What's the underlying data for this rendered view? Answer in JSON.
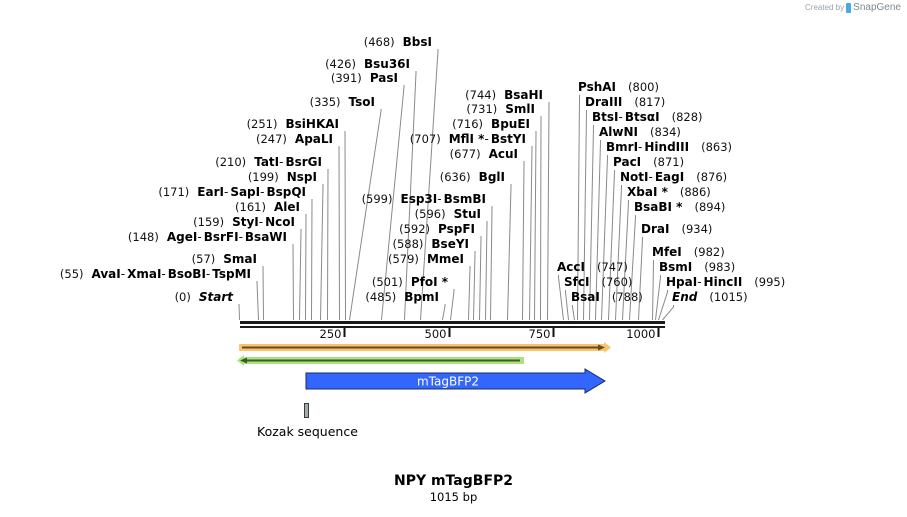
{
  "credit": {
    "prefix": "Created by",
    "brand": "SnapGene"
  },
  "map": {
    "name": "NPY mTagBFP2",
    "length_label": "1015 bp",
    "length_bp": 1015
  },
  "ruler": {
    "ticks": [
      {
        "bp": 250,
        "label": "250"
      },
      {
        "bp": 500,
        "label": "500"
      },
      {
        "bp": 750,
        "label": "750"
      },
      {
        "bp": 1000,
        "label": "1000"
      }
    ]
  },
  "sites_left": [
    {
      "pos": "(468)",
      "names": [
        "BbsI"
      ],
      "bp": 468
    },
    {
      "pos": "(426)",
      "names": [
        "Bsu36I"
      ],
      "bp": 426
    },
    {
      "pos": "(391)",
      "names": [
        "PasI"
      ],
      "bp": 391
    },
    {
      "pos": "(335)",
      "names": [
        "TsoI"
      ],
      "bp": 335
    },
    {
      "pos": "(251)",
      "names": [
        "BsiHKAI"
      ],
      "bp": 251
    },
    {
      "pos": "(247)",
      "names": [
        "ApaLI"
      ],
      "bp": 247
    },
    {
      "pos": "(210)",
      "names": [
        "TatI",
        "BsrGI"
      ],
      "bp": 210
    },
    {
      "pos": "(199)",
      "names": [
        "NspI"
      ],
      "bp": 199
    },
    {
      "pos": "(171)",
      "names": [
        "EarI",
        "SapI",
        "BspQI"
      ],
      "bp": 171
    },
    {
      "pos": "(161)",
      "names": [
        "AleI"
      ],
      "bp": 161
    },
    {
      "pos": "(159)",
      "names": [
        "StyI",
        "NcoI"
      ],
      "bp": 159
    },
    {
      "pos": "(148)",
      "names": [
        "AgeI",
        "BsrFI",
        "BsaWI"
      ],
      "bp": 148
    },
    {
      "pos": "(57)",
      "names": [
        "SmaI"
      ],
      "bp": 57
    },
    {
      "pos": "(55)",
      "names": [
        "AvaI",
        "XmaI",
        "BsoBI",
        "TspMI"
      ],
      "bp": 55
    },
    {
      "pos": "(0)",
      "names": [
        "Start"
      ],
      "bp": 0,
      "italic": true
    }
  ],
  "sites_center": [
    {
      "pos": "(744)",
      "names": [
        "BsaHI"
      ],
      "bp": 744
    },
    {
      "pos": "(731)",
      "names": [
        "SmlI"
      ],
      "bp": 731
    },
    {
      "pos": "(716)",
      "names": [
        "BpuEI"
      ],
      "bp": 716
    },
    {
      "pos": "(707)",
      "names": [
        "MflI *",
        "BstYI"
      ],
      "bp": 707
    },
    {
      "pos": "(677)",
      "names": [
        "AcuI"
      ],
      "bp": 677
    },
    {
      "pos": "(636)",
      "names": [
        "BglI"
      ],
      "bp": 636
    },
    {
      "pos": "(599)",
      "names": [
        "Esp3I",
        "BsmBI"
      ],
      "bp": 599
    },
    {
      "pos": "(596)",
      "names": [
        "StuI"
      ],
      "bp": 596
    },
    {
      "pos": "(592)",
      "names": [
        "PspFI"
      ],
      "bp": 592
    },
    {
      "pos": "(588)",
      "names": [
        "BseYI"
      ],
      "bp": 588
    },
    {
      "pos": "(579)",
      "names": [
        "MmeI"
      ],
      "bp": 579
    },
    {
      "pos": "(501)",
      "names": [
        "PfoI *"
      ],
      "bp": 501
    },
    {
      "pos": "(485)",
      "names": [
        "BpmI"
      ],
      "bp": 485
    }
  ],
  "sites_right": [
    {
      "pos": "(800)",
      "names": [
        "PshAI"
      ],
      "bp": 800
    },
    {
      "pos": "(817)",
      "names": [
        "DraIII"
      ],
      "bp": 817
    },
    {
      "pos": "(828)",
      "names": [
        "BtsI",
        "BtsαI"
      ],
      "bp": 828
    },
    {
      "pos": "(834)",
      "names": [
        "AlwNI"
      ],
      "bp": 834
    },
    {
      "pos": "(863)",
      "names": [
        "BmrI",
        "HindIII"
      ],
      "bp": 863
    },
    {
      "pos": "(871)",
      "names": [
        "PacI"
      ],
      "bp": 871
    },
    {
      "pos": "(876)",
      "names": [
        "NotI",
        "EagI"
      ],
      "bp": 876
    },
    {
      "pos": "(886)",
      "names": [
        "XbaI *"
      ],
      "bp": 886
    },
    {
      "pos": "(894)",
      "names": [
        "BsaBI *"
      ],
      "bp": 894
    },
    {
      "pos": "(934)",
      "names": [
        "DraI"
      ],
      "bp": 934
    },
    {
      "pos": "(747)",
      "names": [
        "AccI"
      ],
      "bp": 747
    },
    {
      "pos": "(760)",
      "names": [
        "SfcI"
      ],
      "bp": 760
    },
    {
      "pos": "(788)",
      "names": [
        "BsaI"
      ],
      "bp": 788
    },
    {
      "pos": "(982)",
      "names": [
        "MfeI"
      ],
      "bp": 982
    },
    {
      "pos": "(983)",
      "names": [
        "BsmI"
      ],
      "bp": 983
    },
    {
      "pos": "(995)",
      "names": [
        "HpaI",
        "HincII"
      ],
      "bp": 995
    },
    {
      "pos": "(1015)",
      "names": [
        "End"
      ],
      "bp": 1015,
      "italic": true
    }
  ],
  "features": [
    {
      "name": "orange-primer-arrow",
      "start": 1,
      "end": 874,
      "direction": "forward",
      "color": "#f6c36f",
      "line": "#6b4a22"
    },
    {
      "name": "green-primer-arrow",
      "start": 1,
      "end": 684,
      "direction": "reverse",
      "color": "#a7e57c",
      "line": "#3f5b2e"
    },
    {
      "name": "mTagBFP2",
      "label": "mTagBFP2",
      "start": 160,
      "end": 874,
      "direction": "forward",
      "color": "#3366ff",
      "stroke": "#1a2a66"
    },
    {
      "name": "Kozak sequence",
      "label": "Kozak sequence",
      "start": 158,
      "end": 167,
      "color": "#a6abb0"
    }
  ],
  "colors": {
    "backbone": "#1a1a1a",
    "leader": "#8a8a8a",
    "cds_blue": "#3366ff"
  }
}
